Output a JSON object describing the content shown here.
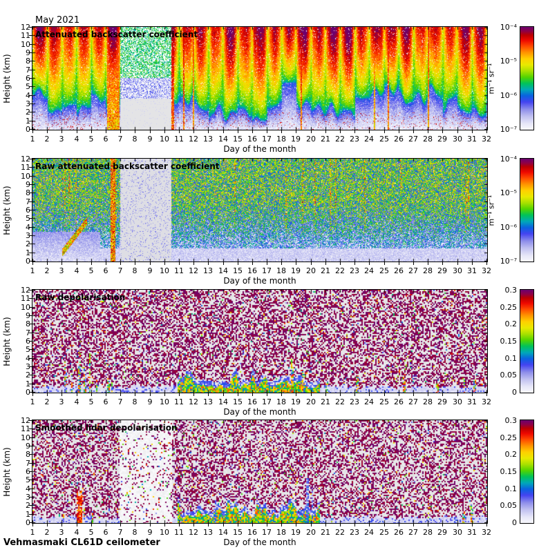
{
  "figure_title": "May 2021",
  "footer": "Vehmasmaki CL61D ceilometer",
  "colors": {
    "background": "#ffffff",
    "axis": "#000000",
    "colormap_stops": [
      [
        0.0,
        "#f8f8fd"
      ],
      [
        0.06,
        "#e6e6f8"
      ],
      [
        0.13,
        "#c0c0f0"
      ],
      [
        0.2,
        "#8c8cea"
      ],
      [
        0.27,
        "#4444f0"
      ],
      [
        0.33,
        "#0a62e0"
      ],
      [
        0.39,
        "#00a8b8"
      ],
      [
        0.45,
        "#00c25a"
      ],
      [
        0.51,
        "#52d400"
      ],
      [
        0.57,
        "#a8e000"
      ],
      [
        0.63,
        "#e8ea00"
      ],
      [
        0.69,
        "#ffd000"
      ],
      [
        0.75,
        "#ff9400"
      ],
      [
        0.81,
        "#ff4c00"
      ],
      [
        0.87,
        "#ee0800"
      ],
      [
        0.92,
        "#bc0000"
      ],
      [
        0.96,
        "#8c0048"
      ],
      [
        1.0,
        "#6b0070"
      ]
    ]
  },
  "chart_data": [
    {
      "type": "heatmap",
      "title": "Attenuated backscatter coefficient",
      "xlabel": "Day of the month",
      "ylabel": "Height (km)",
      "xlim": [
        1,
        32
      ],
      "ylim": [
        0,
        12
      ],
      "x_ticks": [
        "1",
        "2",
        "3",
        "4",
        "5",
        "6",
        "7",
        "8",
        "9",
        "10",
        "11",
        "12",
        "13",
        "14",
        "15",
        "16",
        "17",
        "18",
        "19",
        "20",
        "21",
        "22",
        "23",
        "24",
        "25",
        "26",
        "27",
        "28",
        "29",
        "30",
        "31",
        "32"
      ],
      "y_ticks": [
        "12",
        "11",
        "10",
        "9",
        "8",
        "7",
        "6",
        "5",
        "4",
        "3",
        "2",
        "1",
        "0"
      ],
      "colorbar": {
        "scale": "log",
        "range": [
          "1e-7",
          "1e-4"
        ],
        "ticks": [
          "10⁻⁴",
          "10⁻⁵",
          "10⁻⁶",
          "10⁻⁷"
        ],
        "unit": "m⁻¹ sr⁻¹"
      },
      "render": {
        "kind": "bs_smooth",
        "seed": 11,
        "gap": [
          6.95,
          10.45
        ],
        "maroon": [
          [
            6.05,
            6.93,
            0.9
          ],
          [
            10.47,
            10.66,
            0.97
          ]
        ]
      }
    },
    {
      "type": "heatmap",
      "title": "Raw attenuated backscatter coefficient",
      "xlabel": "Day of the month",
      "ylabel": "Height (km)",
      "xlim": [
        1,
        32
      ],
      "ylim": [
        0,
        12
      ],
      "x_ticks": [
        "1",
        "2",
        "3",
        "4",
        "5",
        "6",
        "7",
        "8",
        "9",
        "10",
        "11",
        "12",
        "13",
        "14",
        "15",
        "16",
        "17",
        "18",
        "19",
        "20",
        "21",
        "22",
        "23",
        "24",
        "25",
        "26",
        "27",
        "28",
        "29",
        "30",
        "31",
        "32"
      ],
      "y_ticks": [
        "12",
        "11",
        "10",
        "9",
        "8",
        "7",
        "6",
        "5",
        "4",
        "3",
        "2",
        "1",
        "0"
      ],
      "colorbar": {
        "scale": "log",
        "range": [
          "1e-7",
          "1e-4"
        ],
        "ticks": [
          "10⁻⁴",
          "10⁻⁵",
          "10⁻⁶",
          "10⁻⁷"
        ],
        "unit": "m⁻¹ sr⁻¹"
      },
      "render": {
        "kind": "bs_raw",
        "seed": 22,
        "gap": [
          6.95,
          10.45
        ],
        "red": [
          6.32,
          6.62
        ],
        "diag": [
          3.0,
          4.7
        ]
      }
    },
    {
      "type": "heatmap",
      "title": "Raw depolarisation",
      "xlabel": "Day of the month",
      "ylabel": "Height (km)",
      "xlim": [
        1,
        32
      ],
      "ylim": [
        0,
        12
      ],
      "x_ticks": [
        "1",
        "2",
        "3",
        "4",
        "5",
        "6",
        "7",
        "8",
        "9",
        "10",
        "11",
        "12",
        "13",
        "14",
        "15",
        "16",
        "17",
        "18",
        "19",
        "20",
        "21",
        "22",
        "23",
        "24",
        "25",
        "26",
        "27",
        "28",
        "29",
        "30",
        "31",
        "32"
      ],
      "y_ticks": [
        "12",
        "11",
        "10",
        "9",
        "8",
        "7",
        "6",
        "5",
        "4",
        "3",
        "2",
        "1",
        "0"
      ],
      "colorbar": {
        "scale": "linear",
        "range": [
          0,
          0.3
        ],
        "ticks": [
          "0.3",
          "0.25",
          "0.2",
          "0.15",
          "0.1",
          "0.05",
          "0"
        ],
        "unit": ""
      },
      "render": {
        "kind": "depol_raw",
        "seed": 33,
        "pm": 0.45,
        "plume": [
          10.9,
          20.6
        ],
        "streaks": [
          [
            3.15,
            3.3,
            3.5
          ],
          [
            3.55,
            3.7,
            2.6
          ],
          [
            4.05,
            4.25,
            4.6
          ],
          [
            4.45,
            4.6,
            3.2
          ],
          [
            4.8,
            4.95,
            5.2
          ],
          [
            5.25,
            5.35,
            2.4
          ],
          [
            6.05,
            6.25,
            1.9
          ],
          [
            6.3,
            6.45,
            1.6
          ],
          [
            10.95,
            11.1,
            2.3
          ],
          [
            18.6,
            18.75,
            4.2
          ],
          [
            19.35,
            19.5,
            3.0
          ],
          [
            21.0,
            21.15,
            1.8
          ],
          [
            23.05,
            23.2,
            2.1
          ],
          [
            26.25,
            26.4,
            2.0
          ],
          [
            28.55,
            28.7,
            1.7
          ],
          [
            30.35,
            30.5,
            2.2
          ],
          [
            31.1,
            31.25,
            1.6
          ]
        ]
      }
    },
    {
      "type": "heatmap",
      "title": "Smoothed lidar depolarisation",
      "xlabel": "Day of the month",
      "ylabel": "Height (km)",
      "xlim": [
        1,
        32
      ],
      "ylim": [
        0,
        12
      ],
      "x_ticks": [
        "1",
        "2",
        "3",
        "4",
        "5",
        "6",
        "7",
        "8",
        "9",
        "10",
        "11",
        "12",
        "13",
        "14",
        "15",
        "16",
        "17",
        "18",
        "19",
        "20",
        "21",
        "22",
        "23",
        "24",
        "25",
        "26",
        "27",
        "28",
        "29",
        "30",
        "31",
        "32"
      ],
      "y_ticks": [
        "12",
        "11",
        "10",
        "9",
        "8",
        "7",
        "6",
        "5",
        "4",
        "3",
        "2",
        "1",
        "0"
      ],
      "colorbar": {
        "scale": "linear",
        "range": [
          0,
          0.3
        ],
        "ticks": [
          "0.3",
          "0.25",
          "0.2",
          "0.15",
          "0.1",
          "0.05",
          "0"
        ],
        "unit": ""
      },
      "render": {
        "kind": "depol_smooth",
        "seed": 44,
        "pm": 0.4,
        "pm_gap": 0.1,
        "gap": [
          6.9,
          10.5
        ],
        "plume": [
          10.9,
          20.6
        ],
        "red": [
          3.95,
          4.35,
          3.8
        ],
        "blues": [
          [
            13.4,
            13.52,
            2.6
          ],
          [
            19.6,
            19.8,
            5.2
          ],
          [
            20.0,
            20.12,
            3.8
          ]
        ],
        "streaks": [
          [
            3.0,
            3.1,
            2.0
          ],
          [
            4.45,
            4.55,
            2.2
          ],
          [
            5.0,
            5.1,
            1.5
          ],
          [
            11.0,
            11.15,
            2.0
          ],
          [
            21.3,
            21.4,
            1.2
          ],
          [
            30.3,
            30.45,
            1.8
          ],
          [
            30.9,
            31.05,
            2.2
          ]
        ]
      }
    }
  ]
}
